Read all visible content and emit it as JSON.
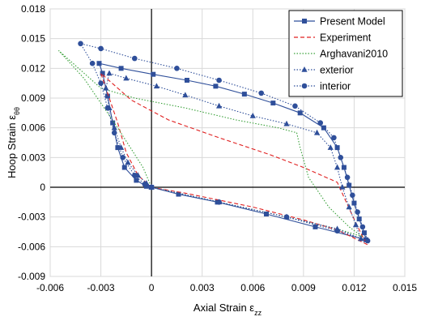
{
  "chart_data": {
    "type": "scatter",
    "xlabel": "Axial Strain ε",
    "xlabel_sub": "zz",
    "ylabel": "Hoop Strain ε",
    "ylabel_sub": "θθ",
    "xlim": [
      -0.006,
      0.015
    ],
    "ylim": [
      -0.009,
      0.018
    ],
    "xticks": [
      "-0.006",
      "-0.003",
      "0",
      "0.003",
      "0.006",
      "0.009",
      "0.012",
      "0.015"
    ],
    "yticks": [
      "-0.009",
      "-0.006",
      "-0.003",
      "0",
      "0.003",
      "0.006",
      "0.009",
      "0.012",
      "0.015",
      "0.018"
    ],
    "grid": true,
    "legend_position": "top-right",
    "series": [
      {
        "name": "Present Model",
        "color": "#2f4f9a",
        "line": "solid",
        "marker": "square",
        "points": [
          [
            0,
            0
          ],
          [
            0.0016,
            -0.0007
          ],
          [
            0.0039,
            -0.0015
          ],
          [
            0.0068,
            -0.0027
          ],
          [
            0.0097,
            -0.004
          ],
          [
            0.0127,
            -0.0053
          ],
          [
            0.0126,
            -0.0046
          ],
          [
            0.0123,
            -0.0032
          ],
          [
            0.012,
            -0.0016
          ],
          [
            0.0117,
            0.0002
          ],
          [
            0.0114,
            0.002
          ],
          [
            0.011,
            0.004
          ],
          [
            0.0102,
            0.006
          ],
          [
            0.0088,
            0.0075
          ],
          [
            0.0072,
            0.0085
          ],
          [
            0.0055,
            0.0094
          ],
          [
            0.0038,
            0.0102
          ],
          [
            0.0021,
            0.0108
          ],
          [
            0.0001,
            0.0114
          ],
          [
            -0.0018,
            0.012
          ],
          [
            -0.0031,
            0.0125
          ],
          [
            -0.0029,
            0.0115
          ],
          [
            -0.0026,
            0.0092
          ],
          [
            -0.0023,
            0.0065
          ],
          [
            -0.002,
            0.004
          ],
          [
            -0.0016,
            0.002
          ],
          [
            -0.0009,
            0.0007
          ],
          [
            -0.0003,
            0.0001
          ],
          [
            0,
            0
          ]
        ]
      },
      {
        "name": "Experiment",
        "color": "#e02020",
        "line": "dashed",
        "marker": "none",
        "points": [
          [
            0,
            0
          ],
          [
            0.002,
            -0.0006
          ],
          [
            0.006,
            -0.002
          ],
          [
            0.009,
            -0.0033
          ],
          [
            0.011,
            -0.0043
          ],
          [
            0.0128,
            -0.0058
          ],
          [
            0.0125,
            -0.005
          ],
          [
            0.0118,
            -0.0025
          ],
          [
            0.0114,
            -0.001
          ],
          [
            0.011,
            0.0005
          ],
          [
            0.009,
            0.002
          ],
          [
            0.007,
            0.0033
          ],
          [
            0.004,
            0.005
          ],
          [
            0.001,
            0.0068
          ],
          [
            -0.0012,
            0.0088
          ],
          [
            -0.003,
            0.0115
          ],
          [
            -0.0026,
            0.0095
          ],
          [
            -0.002,
            0.0065
          ],
          [
            -0.0015,
            0.0035
          ],
          [
            -0.0008,
            0.0012
          ],
          [
            0,
            0
          ]
        ]
      },
      {
        "name": "Arghavani2010",
        "color": "#3aa13a",
        "line": "dotted",
        "marker": "none",
        "points": [
          [
            0,
            0
          ],
          [
            0.004,
            -0.0015
          ],
          [
            0.008,
            -0.003
          ],
          [
            0.011,
            -0.0042
          ],
          [
            0.0125,
            -0.005
          ],
          [
            0.0117,
            -0.004
          ],
          [
            0.0105,
            -0.002
          ],
          [
            0.0093,
            0.001
          ],
          [
            0.0088,
            0.004
          ],
          [
            0.0086,
            0.0055
          ],
          [
            0.0075,
            0.006
          ],
          [
            0.005,
            0.0068
          ],
          [
            0.002,
            0.008
          ],
          [
            -0.001,
            0.009
          ],
          [
            -0.003,
            0.01
          ],
          [
            -0.0055,
            0.0138
          ],
          [
            -0.004,
            0.011
          ],
          [
            -0.002,
            0.006
          ],
          [
            -0.0005,
            0.002
          ],
          [
            0,
            0
          ]
        ]
      },
      {
        "name": "exterior",
        "color": "#2f4f9a",
        "line": "dotted",
        "marker": "triangle",
        "points": [
          [
            0,
            0
          ],
          [
            0.004,
            -0.0015
          ],
          [
            0.008,
            -0.003
          ],
          [
            0.011,
            -0.0042
          ],
          [
            0.0124,
            -0.0052
          ],
          [
            0.0121,
            -0.0038
          ],
          [
            0.0117,
            -0.002
          ],
          [
            0.0113,
            0.0
          ],
          [
            0.011,
            0.002
          ],
          [
            0.0106,
            0.004
          ],
          [
            0.0098,
            0.0055
          ],
          [
            0.008,
            0.0064
          ],
          [
            0.006,
            0.0072
          ],
          [
            0.004,
            0.0082
          ],
          [
            0.002,
            0.0093
          ],
          [
            0.0003,
            0.0102
          ],
          [
            -0.0015,
            0.011
          ],
          [
            -0.0025,
            0.0115
          ],
          [
            -0.0027,
            0.01
          ],
          [
            -0.0025,
            0.008
          ],
          [
            -0.0022,
            0.006
          ],
          [
            -0.0018,
            0.004
          ],
          [
            -0.0014,
            0.0025
          ],
          [
            -0.0008,
            0.0012
          ],
          [
            -0.0003,
            0.0004
          ],
          [
            0,
            0
          ]
        ]
      },
      {
        "name": "interior",
        "color": "#2f4f9a",
        "line": "dotted",
        "marker": "circle",
        "points": [
          [
            0,
            0
          ],
          [
            0.004,
            -0.0015
          ],
          [
            0.008,
            -0.003
          ],
          [
            0.011,
            -0.0044
          ],
          [
            0.0128,
            -0.0054
          ],
          [
            0.0125,
            -0.004
          ],
          [
            0.0122,
            -0.0025
          ],
          [
            0.0119,
            -0.0008
          ],
          [
            0.0116,
            0.001
          ],
          [
            0.0112,
            0.003
          ],
          [
            0.0108,
            0.005
          ],
          [
            0.01,
            0.0065
          ],
          [
            0.0085,
            0.0082
          ],
          [
            0.0065,
            0.0095
          ],
          [
            0.004,
            0.0108
          ],
          [
            0.0015,
            0.012
          ],
          [
            -0.001,
            0.013
          ],
          [
            -0.003,
            0.014
          ],
          [
            -0.0042,
            0.0145
          ],
          [
            -0.0035,
            0.0125
          ],
          [
            -0.003,
            0.0105
          ],
          [
            -0.0026,
            0.008
          ],
          [
            -0.0022,
            0.0055
          ],
          [
            -0.0017,
            0.003
          ],
          [
            -0.001,
            0.0012
          ],
          [
            -0.0004,
            0.0003
          ],
          [
            0,
            0
          ]
        ]
      }
    ]
  }
}
